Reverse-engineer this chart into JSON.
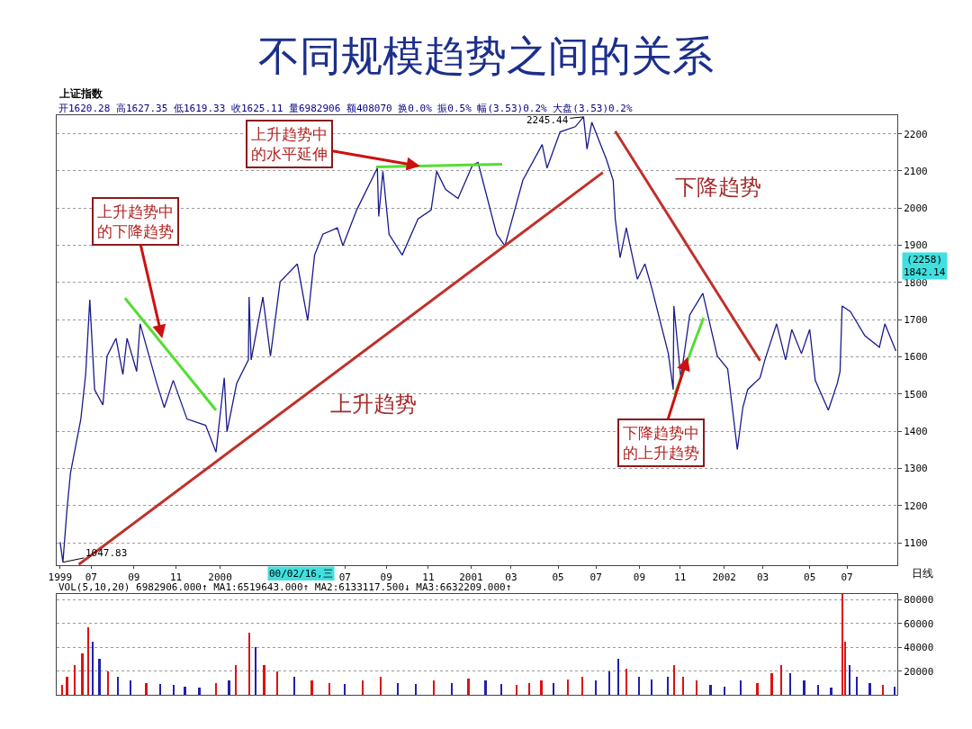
{
  "chart_data": [
    {
      "type": "line",
      "title": "不同规模趋势之间的关系",
      "subtitle": "上证指数",
      "xlim": [
        "1999-05-12",
        "2002-09-12"
      ],
      "xticks": [
        {
          "value": "1999-05-17",
          "label": "1999"
        },
        {
          "value": "1999-07-01",
          "label": "07"
        },
        {
          "value": "1999-09-01",
          "label": "09"
        },
        {
          "value": "1999-11-01",
          "label": "11"
        },
        {
          "value": "2000-01-04",
          "label": "2000"
        },
        {
          "value": "2000-07-03",
          "label": "07"
        },
        {
          "value": "2000-09-01",
          "label": "09"
        },
        {
          "value": "2000-11-01",
          "label": "11"
        },
        {
          "value": "2001-01-02",
          "label": "2001"
        },
        {
          "value": "2001-03-01",
          "label": "03"
        },
        {
          "value": "2001-05-08",
          "label": "05"
        },
        {
          "value": "2001-07-02",
          "label": "07"
        },
        {
          "value": "2001-09-03",
          "label": "09"
        },
        {
          "value": "2001-11-01",
          "label": "11"
        },
        {
          "value": "2002-01-04",
          "label": "2002"
        },
        {
          "value": "2002-03-01",
          "label": "03"
        },
        {
          "value": "2002-05-08",
          "label": "05"
        },
        {
          "value": "2002-07-01",
          "label": "07"
        }
      ],
      "ylim": [
        1040,
        2250
      ],
      "yticks": [
        1100,
        1200,
        1300,
        1400,
        1500,
        1600,
        1700,
        1800,
        1900,
        2000,
        2100,
        2200
      ],
      "grid": "y",
      "series": [
        {
          "color": "#1a1a8c",
          "x": [
            "1999-05-17",
            "1999-05-21",
            "1999-05-27",
            "1999-06-01",
            "1999-06-16",
            "1999-06-23",
            "1999-06-29",
            "1999-07-06",
            "1999-07-18",
            "1999-07-24",
            "1999-08-06",
            "1999-08-16",
            "1999-08-22",
            "1999-09-05",
            "1999-09-10",
            "1999-10-04",
            "1999-10-15",
            "1999-10-28",
            "1999-11-17",
            "1999-12-14",
            "1999-12-29",
            "2000-01-10",
            "2000-01-14",
            "2000-01-28",
            "2000-02-14",
            "2000-02-15",
            "2000-02-18",
            "2000-03-06",
            "2000-03-17",
            "2000-03-31",
            "2000-04-25",
            "2000-05-10",
            "2000-05-20",
            "2000-06-01",
            "2000-06-22",
            "2000-06-30",
            "2000-07-20",
            "2000-08-19",
            "2000-08-21",
            "2000-08-27",
            "2000-09-05",
            "2000-09-24",
            "2000-10-17",
            "2000-11-05",
            "2000-11-13",
            "2000-11-26",
            "2000-12-14",
            "2001-01-04",
            "2001-01-12",
            "2001-02-08",
            "2001-02-20",
            "2001-03-18",
            "2001-04-15",
            "2001-04-22",
            "2001-05-11",
            "2001-06-02",
            "2001-06-14",
            "2001-06-19",
            "2001-06-26",
            "2001-07-17",
            "2001-07-27",
            "2001-07-30",
            "2001-08-06",
            "2001-08-15",
            "2001-08-31",
            "2001-09-11",
            "2001-09-21",
            "2001-10-15",
            "2001-10-22",
            "2001-10-23",
            "2001-11-02",
            "2001-11-15",
            "2001-12-04",
            "2001-12-25",
            "2002-01-09",
            "2002-01-23",
            "2002-01-31",
            "2002-02-07",
            "2002-02-25",
            "2002-03-04",
            "2002-03-21",
            "2002-04-03",
            "2002-04-12",
            "2002-04-26",
            "2002-05-08",
            "2002-05-16",
            "2002-06-04",
            "2002-06-17",
            "2002-06-21",
            "2002-06-24",
            "2002-07-06",
            "2002-07-27",
            "2002-08-17",
            "2002-08-25",
            "2002-09-10"
          ],
          "values": [
            1102,
            1047.83,
            1192,
            1288,
            1433,
            1553,
            1754,
            1512,
            1471,
            1602,
            1650,
            1553,
            1650,
            1561,
            1689,
            1529,
            1464,
            1537,
            1433,
            1416,
            1344,
            1544,
            1399,
            1529,
            1592,
            1761,
            1592,
            1761,
            1602,
            1802,
            1850,
            1698,
            1874,
            1930,
            1947,
            1899,
            1995,
            2108,
            1978,
            2099,
            1930,
            1874,
            1971,
            1995,
            2099,
            2050,
            2026,
            2116,
            2123,
            1930,
            1899,
            2075,
            2171,
            2108,
            2205,
            2219,
            2245.44,
            2159,
            2231,
            2132,
            2075,
            1971,
            1867,
            1947,
            1809,
            1850,
            1785,
            1609,
            1512,
            1737,
            1544,
            1713,
            1771,
            1602,
            1568,
            1351,
            1464,
            1512,
            1544,
            1592,
            1689,
            1592,
            1674,
            1609,
            1674,
            1537,
            1457,
            1529,
            1561,
            1737,
            1722,
            1657,
            1626,
            1689,
            1616
          ]
        },
        {
          "color": "#c0302a",
          "x": [
            "1999-06-13",
            "2001-07-12"
          ],
          "values": [
            1042,
            2096
          ]
        },
        {
          "color": "#c0302a",
          "x": [
            "2001-07-30",
            "2002-02-25"
          ],
          "values": [
            2207,
            1590
          ]
        },
        {
          "color": "#55dd33",
          "x": [
            "1999-08-19",
            "1999-12-29"
          ],
          "values": [
            1758,
            1457
          ]
        },
        {
          "color": "#55dd33",
          "x": [
            "2000-08-17",
            "2001-02-16"
          ],
          "values": [
            2111,
            2118
          ]
        },
        {
          "color": "#55dd33",
          "x": [
            "2001-10-24",
            "2001-12-05"
          ],
          "values": [
            1498,
            1705
          ]
        }
      ],
      "annotations": [
        "开1620.28 高1627.35 低1619.33 收1625.11 量6982906 额408070 换0.0% 振0.5% 幅(3.53)0.2% 大盘(3.53)0.2%",
        {
          "text": "2245.44",
          "x": "2001-06-14",
          "y": 2245.44
        },
        {
          "text": "1047.83",
          "x": "1999-05-21",
          "y": 1047.83
        },
        {
          "text": "上升趋势中的下降趋势",
          "x": "1999-10-12",
          "y": 1650
        },
        {
          "text": "上升趋势中的水平延伸",
          "x": "2000-10-20",
          "y": 2113
        },
        {
          "text": "下降趋势中的上升趋势",
          "x": "2001-11-12",
          "y": 1600
        },
        "上升趋势",
        "下降趋势",
        "(2258)\n1842.14",
        "00/02/16,三",
        "日线"
      ]
    },
    {
      "type": "bar",
      "xlim": [
        "1999-05-12",
        "2002-09-12"
      ],
      "ylim": [
        0,
        85000
      ],
      "yticks": [
        20000,
        40000,
        60000,
        80000
      ],
      "grid": "y",
      "tick_labels": "y",
      "x": [
        "1999-05-20",
        "1999-05-27",
        "1999-06-07",
        "1999-06-18",
        "1999-06-27",
        "1999-07-03",
        "1999-07-13",
        "1999-07-25",
        "1999-08-09",
        "1999-08-27",
        "1999-09-19",
        "1999-10-09",
        "1999-10-29",
        "1999-11-14",
        "1999-12-05",
        "1999-12-29",
        "2000-01-17",
        "2000-01-27",
        "2000-02-15",
        "2000-02-24",
        "2000-03-08",
        "2000-03-27",
        "2000-04-21",
        "2000-05-16",
        "2000-06-10",
        "2000-07-03",
        "2000-07-29",
        "2000-08-24",
        "2000-09-18",
        "2000-10-14",
        "2000-11-09",
        "2000-12-05",
        "2000-12-29",
        "2001-01-23",
        "2001-02-15",
        "2001-03-09",
        "2001-03-27",
        "2001-04-14",
        "2001-05-01",
        "2001-05-22",
        "2001-06-12",
        "2001-07-02",
        "2001-07-21",
        "2001-08-03",
        "2001-08-15",
        "2001-09-02",
        "2001-09-21",
        "2001-10-14",
        "2001-10-23",
        "2001-11-05",
        "2001-11-25",
        "2001-12-15",
        "2002-01-04",
        "2002-01-28",
        "2002-02-21",
        "2002-03-14",
        "2002-03-28",
        "2002-04-10",
        "2002-04-30",
        "2002-05-20",
        "2002-06-08",
        "2002-06-24",
        "2002-06-28",
        "2002-07-05",
        "2002-07-15",
        "2002-08-03",
        "2002-08-22",
        "2002-09-08"
      ],
      "values": [
        8000,
        15000,
        25000,
        35000,
        57000,
        45000,
        30000,
        20000,
        15000,
        12000,
        10000,
        9000,
        8000,
        7000,
        6000,
        10000,
        12000,
        25000,
        52000,
        40000,
        25000,
        20000,
        15000,
        12000,
        10000,
        9000,
        12000,
        15000,
        10000,
        9000,
        12000,
        10000,
        14000,
        12000,
        9000,
        8000,
        10000,
        12000,
        10000,
        13000,
        15000,
        12000,
        20000,
        30000,
        22000,
        15000,
        13000,
        15000,
        25000,
        15000,
        12000,
        8000,
        7000,
        12000,
        10000,
        18000,
        25000,
        18000,
        12000,
        8000,
        6000,
        85000,
        45000,
        25000,
        15000,
        10000,
        8000,
        7000
      ],
      "colors": [
        "#e01010",
        "#e01010",
        "#e01010",
        "#e01010",
        "#e01010",
        "#2020b0",
        "#2020b0",
        "#e01010",
        "#2020b0",
        "#2020b0",
        "#e01010",
        "#2020b0",
        "#2020b0",
        "#2020b0",
        "#2020b0",
        "#e01010",
        "#2020b0",
        "#e01010",
        "#e01010",
        "#2020b0",
        "#e01010",
        "#e01010",
        "#2020b0",
        "#e01010",
        "#e01010",
        "#2020b0",
        "#e01010",
        "#e01010",
        "#2020b0",
        "#2020b0",
        "#e01010",
        "#2020b0",
        "#e01010",
        "#2020b0",
        "#2020b0",
        "#e01010",
        "#e01010",
        "#e01010",
        "#2020b0",
        "#e01010",
        "#e01010",
        "#2020b0",
        "#2020b0",
        "#2020b0",
        "#e01010",
        "#2020b0",
        "#2020b0",
        "#2020b0",
        "#e01010",
        "#e01010",
        "#e01010",
        "#2020b0",
        "#2020b0",
        "#2020b0",
        "#e01010",
        "#e01010",
        "#e01010",
        "#2020b0",
        "#2020b0",
        "#2020b0",
        "#2020b0",
        "#e01010",
        "#e01010",
        "#2020b0",
        "#2020b0",
        "#2020b0",
        "#e01010",
        "#2020b0"
      ],
      "annotations": [
        "VOL(5,10,20) 6982906.000↑ MA1:6519643.000↑ MA2:6133117.500↓ MA3:6632209.000↑"
      ]
    }
  ]
}
